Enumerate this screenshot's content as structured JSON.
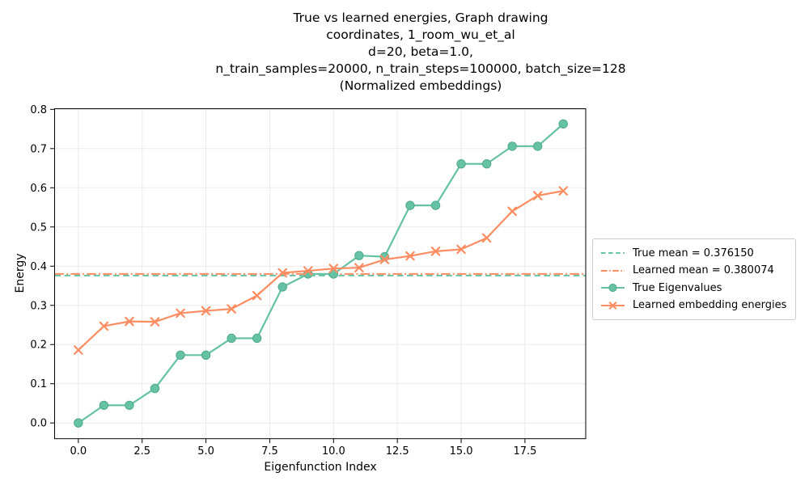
{
  "title": {
    "lines": [
      "True vs learned energies, Graph drawing",
      "coordinates, 1_room_wu_et_al",
      "d=20, beta=1.0,",
      "n_train_samples=20000, n_train_steps=100000, batch_size=128",
      "(Normalized embeddings)"
    ]
  },
  "axes": {
    "xlabel": "Eigenfunction Index",
    "ylabel": "Energy"
  },
  "legend": {
    "items": [
      {
        "label": "True mean = 0.376150"
      },
      {
        "label": "Learned mean = 0.380074"
      },
      {
        "label": "True Eigenvalues"
      },
      {
        "label": "Learned embedding energies"
      }
    ]
  },
  "chart_data": {
    "type": "line",
    "title": "True vs learned energies, Graph drawing coordinates, 1_room_wu_et_al d=20, beta=1.0, n_train_samples=20000, n_train_steps=100000, batch_size=128 (Normalized embeddings)",
    "xlabel": "Eigenfunction Index",
    "ylabel": "Energy",
    "grid": true,
    "legend_position": "center right, outside axes",
    "xlim": [
      -0.93,
      19.88
    ],
    "ylim": [
      -0.0402,
      0.8017
    ],
    "x": [
      0,
      1,
      2,
      3,
      4,
      5,
      6,
      7,
      8,
      9,
      10,
      11,
      12,
      13,
      14,
      15,
      16,
      17,
      18,
      19
    ],
    "series": [
      {
        "name": "True Eigenvalues",
        "color": "#66c2a5",
        "marker": "circle",
        "line_style": "solid",
        "values": [
          0.0,
          0.045,
          0.045,
          0.088,
          0.173,
          0.173,
          0.216,
          0.216,
          0.347,
          0.38,
          0.38,
          0.427,
          0.424,
          0.555,
          0.555,
          0.661,
          0.661,
          0.706,
          0.706,
          0.763
        ]
      },
      {
        "name": "Learned embedding energies",
        "color": "#fc8d62",
        "marker": "x",
        "line_style": "solid",
        "values": [
          0.186,
          0.247,
          0.259,
          0.258,
          0.28,
          0.286,
          0.291,
          0.325,
          0.383,
          0.388,
          0.394,
          0.396,
          0.417,
          0.426,
          0.438,
          0.443,
          0.472,
          0.54,
          0.58,
          0.592
        ]
      }
    ],
    "mean_lines": [
      {
        "label": "True mean = 0.376150",
        "value": 0.37615,
        "color": "#66c2a5",
        "dash": "dashed"
      },
      {
        "label": "Learned mean = 0.380074",
        "value": 0.380074,
        "color": "#fc8d62",
        "dash": "dashdot"
      }
    ],
    "x_ticks": [
      {
        "value": 0,
        "label": "0.0"
      },
      {
        "value": 2.5,
        "label": "2.5"
      },
      {
        "value": 5,
        "label": "5.0"
      },
      {
        "value": 7.5,
        "label": "7.5"
      },
      {
        "value": 10,
        "label": "10.0"
      },
      {
        "value": 12.5,
        "label": "12.5"
      },
      {
        "value": 15,
        "label": "15.0"
      },
      {
        "value": 17.5,
        "label": "17.5"
      }
    ],
    "y_ticks": [
      {
        "value": 0.0,
        "label": "0.0"
      },
      {
        "value": 0.1,
        "label": "0.1"
      },
      {
        "value": 0.2,
        "label": "0.2"
      },
      {
        "value": 0.3,
        "label": "0.3"
      },
      {
        "value": 0.4,
        "label": "0.4"
      },
      {
        "value": 0.5,
        "label": "0.5"
      },
      {
        "value": 0.6,
        "label": "0.6"
      },
      {
        "value": 0.7,
        "label": "0.7"
      },
      {
        "value": 0.8,
        "label": "0.8"
      }
    ]
  }
}
